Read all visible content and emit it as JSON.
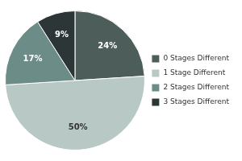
{
  "chart_data": {
    "type": "pie",
    "categories": [
      "0 Stages Different",
      "1 Stage Different",
      "2 Stages Different",
      "3 Stages Different"
    ],
    "values": [
      24,
      50,
      17,
      9
    ],
    "value_labels": [
      "24%",
      "50%",
      "17%",
      "9%"
    ],
    "colors": [
      "#4d5e5a",
      "#b8c8c4",
      "#6b8c87",
      "#2c3636"
    ],
    "legend": "right",
    "data_labels": true
  }
}
